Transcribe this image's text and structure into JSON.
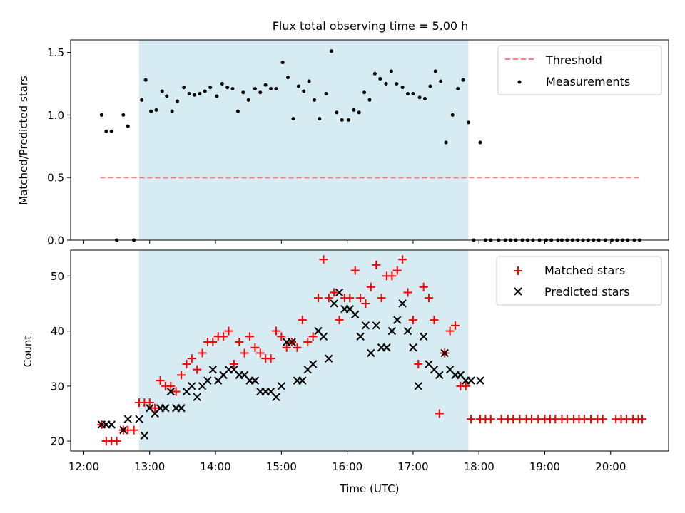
{
  "chart_data": [
    {
      "type": "scatter",
      "title": "Flux total observing time = 5.00 h",
      "xlabel": "",
      "ylabel": "Matched/Predicted stars",
      "xlim": [
        11.8,
        20.88
      ],
      "ylim": [
        0.0,
        1.6
      ],
      "yticks": [
        0.0,
        0.5,
        1.0,
        1.5
      ],
      "ytick_labels": [
        "0.0",
        "0.5",
        "1.0",
        "1.5"
      ],
      "observing_window_hours": [
        12.84,
        17.84
      ],
      "threshold": {
        "name": "Threshold",
        "value": 0.5,
        "x_range": [
          12.25,
          20.45
        ]
      },
      "legend": [
        "Threshold",
        "Measurements"
      ],
      "series": [
        {
          "name": "Measurements",
          "x": [
            12.27,
            12.34,
            12.42,
            12.5,
            12.6,
            12.67,
            12.76,
            12.88,
            12.94,
            13.02,
            13.1,
            13.19,
            13.26,
            13.34,
            13.42,
            13.52,
            13.6,
            13.68,
            13.76,
            13.84,
            13.92,
            14.02,
            14.1,
            14.18,
            14.26,
            14.34,
            14.42,
            14.5,
            14.6,
            14.68,
            14.76,
            14.84,
            14.92,
            15.02,
            15.1,
            15.18,
            15.26,
            15.34,
            15.42,
            15.5,
            15.58,
            15.68,
            15.76,
            15.84,
            15.92,
            16.02,
            16.1,
            16.18,
            16.26,
            16.34,
            16.42,
            16.5,
            16.59,
            16.67,
            16.75,
            16.84,
            16.92,
            17.0,
            17.1,
            17.18,
            17.26,
            17.34,
            17.42,
            17.5,
            17.6,
            17.68,
            17.76,
            17.84,
            17.92,
            18.02,
            18.1,
            18.18,
            18.3,
            18.4,
            18.48,
            18.56,
            18.66,
            18.74,
            18.82,
            18.92,
            19.02,
            19.1,
            19.2,
            19.26,
            19.34,
            19.42,
            19.5,
            19.58,
            19.66,
            19.74,
            19.82,
            19.92,
            20.02,
            20.1,
            20.18,
            20.26,
            20.36,
            20.44
          ],
          "y": [
            1.0,
            0.87,
            0.87,
            0.0,
            1.0,
            0.91,
            0.0,
            1.12,
            1.28,
            1.03,
            1.04,
            1.19,
            1.15,
            1.03,
            1.11,
            1.22,
            1.17,
            1.16,
            1.17,
            1.19,
            1.22,
            1.15,
            1.25,
            1.22,
            1.21,
            1.03,
            1.18,
            1.12,
            1.21,
            1.18,
            1.24,
            1.21,
            1.21,
            1.42,
            1.3,
            0.97,
            1.23,
            1.19,
            1.27,
            1.12,
            0.97,
            1.17,
            1.51,
            1.02,
            0.96,
            0.96,
            1.04,
            1.02,
            1.18,
            1.12,
            1.33,
            1.29,
            1.25,
            1.35,
            1.25,
            1.22,
            1.17,
            1.17,
            1.14,
            1.13,
            1.23,
            1.35,
            1.27,
            0.78,
            1.0,
            1.21,
            1.28,
            0.94,
            0.0,
            0.78,
            0.0,
            0.0,
            0.0,
            0.0,
            0.0,
            0.0,
            0.0,
            0.0,
            0.0,
            0.0,
            0.0,
            0.0,
            0.0,
            0.0,
            0.0,
            0.0,
            0.0,
            0.0,
            0.0,
            0.0,
            0.0,
            0.0,
            0.0,
            0.0,
            0.0,
            0.0,
            0.0,
            0.0
          ]
        }
      ]
    },
    {
      "type": "scatter",
      "title": "",
      "xlabel": "Time (UTC)",
      "ylabel": "Count",
      "xlim": [
        11.8,
        20.88
      ],
      "ylim": [
        18.2,
        54.7
      ],
      "yticks": [
        20,
        30,
        40,
        50
      ],
      "ytick_labels": [
        "20",
        "30",
        "40",
        "50"
      ],
      "xticks": [
        12,
        13,
        14,
        15,
        16,
        17,
        18,
        19,
        20
      ],
      "xtick_labels": [
        "12:00",
        "13:00",
        "14:00",
        "15:00",
        "16:00",
        "17:00",
        "18:00",
        "19:00",
        "20:00"
      ],
      "observing_window_hours": [
        12.84,
        17.84
      ],
      "legend": [
        "Matched stars",
        "Predicted stars"
      ],
      "series": [
        {
          "name": "Matched stars",
          "marker": "+",
          "color": "#ff0000",
          "x": [
            12.27,
            12.34,
            12.42,
            12.5,
            12.6,
            12.67,
            12.76,
            12.84,
            12.92,
            13.0,
            13.08,
            13.16,
            13.24,
            13.32,
            13.4,
            13.48,
            13.56,
            13.64,
            13.72,
            13.8,
            13.88,
            13.96,
            14.04,
            14.12,
            14.2,
            14.28,
            14.36,
            14.44,
            14.52,
            14.6,
            14.68,
            14.76,
            14.84,
            14.92,
            15.0,
            15.08,
            15.16,
            15.24,
            15.32,
            15.4,
            15.48,
            15.56,
            15.64,
            15.72,
            15.8,
            15.88,
            15.96,
            16.04,
            16.12,
            16.2,
            16.28,
            16.36,
            16.44,
            16.52,
            16.6,
            16.68,
            16.76,
            16.84,
            16.92,
            17.0,
            17.08,
            17.16,
            17.24,
            17.32,
            17.4,
            17.48,
            17.56,
            17.64,
            17.72,
            17.8,
            17.88,
            18.02,
            18.1,
            18.18,
            18.34,
            18.44,
            18.52,
            18.62,
            18.72,
            18.8,
            18.9,
            19.0,
            19.08,
            19.16,
            19.26,
            19.34,
            19.44,
            19.52,
            19.6,
            19.7,
            19.8,
            19.88,
            20.08,
            20.16,
            20.24,
            20.34,
            20.42,
            20.48
          ],
          "y": [
            23,
            20,
            20,
            20,
            22,
            22,
            22,
            27,
            27,
            27,
            26,
            31,
            30,
            30,
            29,
            32,
            34,
            35,
            33,
            36,
            38,
            38,
            39,
            39,
            40,
            34,
            38,
            36,
            39,
            37,
            36,
            35,
            35,
            40,
            39,
            37,
            38,
            37,
            42,
            38,
            39,
            46,
            53,
            46,
            47,
            42,
            46,
            46,
            51,
            46,
            45,
            48,
            52,
            46,
            50,
            50,
            51,
            53,
            47,
            42,
            34,
            48,
            46,
            42,
            25,
            36,
            40,
            41,
            30,
            30,
            24,
            24,
            24,
            24,
            24,
            24,
            24,
            24,
            24,
            24,
            24,
            24,
            24,
            24,
            24,
            24,
            24,
            24,
            24,
            24,
            24,
            24,
            24,
            24,
            24,
            24,
            24,
            24
          ],
          "note": ""
        },
        {
          "name": "Predicted stars",
          "marker": "x",
          "color": "#000000",
          "x": [
            12.27,
            12.34,
            12.42,
            12.6,
            12.67,
            12.84,
            12.92,
            13.0,
            13.08,
            13.16,
            13.24,
            13.32,
            13.4,
            13.48,
            13.56,
            13.64,
            13.72,
            13.8,
            13.88,
            13.96,
            14.04,
            14.12,
            14.2,
            14.28,
            14.36,
            14.44,
            14.52,
            14.6,
            14.68,
            14.76,
            14.84,
            14.92,
            15.0,
            15.08,
            15.16,
            15.24,
            15.32,
            15.4,
            15.48,
            15.56,
            15.64,
            15.72,
            15.8,
            15.88,
            15.96,
            16.04,
            16.12,
            16.2,
            16.28,
            16.36,
            16.44,
            16.52,
            16.6,
            16.68,
            16.76,
            16.84,
            16.92,
            17.0,
            17.08,
            17.16,
            17.24,
            17.32,
            17.4,
            17.48,
            17.56,
            17.64,
            17.72,
            17.8,
            17.88,
            18.02
          ],
          "y": [
            23,
            23,
            23,
            22,
            24,
            24,
            21,
            26,
            25,
            26,
            26,
            29,
            26,
            26,
            29,
            30,
            28,
            30,
            31,
            33,
            31,
            32,
            33,
            33,
            32,
            32,
            31,
            31,
            29,
            29,
            29,
            28,
            30,
            38,
            38,
            31,
            31,
            33,
            34,
            40,
            39,
            35,
            45,
            47,
            44,
            44,
            43,
            39,
            41,
            36,
            41,
            37,
            37,
            40,
            42,
            45,
            40,
            37,
            30,
            39,
            34,
            33,
            32,
            36,
            33,
            32,
            32,
            31,
            31,
            31
          ],
          "note": ""
        }
      ]
    }
  ]
}
